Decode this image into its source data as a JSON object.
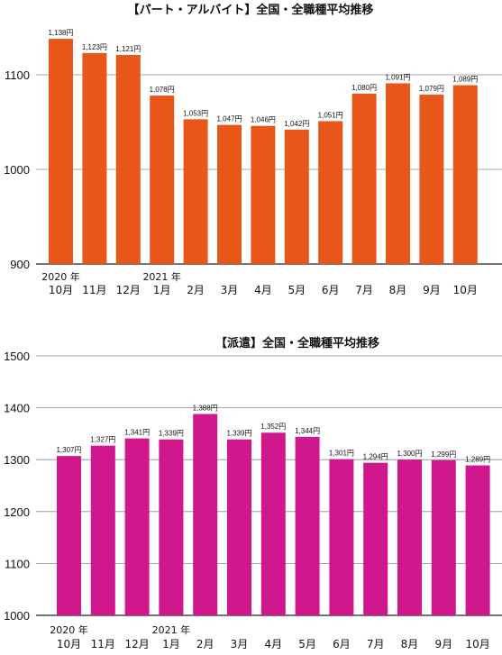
{
  "chart_data": [
    {
      "type": "bar",
      "title": "【パート・アルバイト】全国・全職種平均推移",
      "categories": [
        "10月",
        "11月",
        "12月",
        "1月",
        "2月",
        "3月",
        "4月",
        "5月",
        "6月",
        "7月",
        "8月",
        "9月",
        "10月"
      ],
      "year_labels": [
        {
          "index": 0,
          "text": "2020 年"
        },
        {
          "index": 3,
          "text": "2021 年"
        }
      ],
      "values": [
        1138,
        1123,
        1121,
        1078,
        1053,
        1047,
        1046,
        1042,
        1051,
        1080,
        1091,
        1079,
        1089
      ],
      "data_labels": [
        "1,138円",
        "1,123円",
        "1,121円",
        "1,078円",
        "1,053円",
        "1,047円",
        "1,046円",
        "1,042円",
        "1,051円",
        "1,080円",
        "1,091円",
        "1,079円",
        "1,089円"
      ],
      "yticks": [
        900,
        1000,
        1100
      ],
      "ylim": [
        900,
        1160
      ],
      "grid": true,
      "color": "#E8561A"
    },
    {
      "type": "bar",
      "title": "【派遣】全国・全職種平均推移",
      "categories": [
        "10月",
        "11月",
        "12月",
        "1月",
        "2月",
        "3月",
        "4月",
        "5月",
        "6月",
        "7月",
        "8月",
        "9月",
        "10月"
      ],
      "year_labels": [
        {
          "index": 0,
          "text": "2020 年"
        },
        {
          "index": 3,
          "text": "2021 年"
        }
      ],
      "values": [
        1307,
        1327,
        1341,
        1339,
        1388,
        1339,
        1352,
        1344,
        1301,
        1294,
        1300,
        1299,
        1289
      ],
      "data_labels": [
        "1,307円",
        "1,327円",
        "1,341円",
        "1,339円",
        "1,388円",
        "1,339円",
        "1,352円",
        "1,344円",
        "1,301円",
        "1,294円",
        "1,300円",
        "1,299円",
        "1,289円"
      ],
      "yticks": [
        1000,
        1100,
        1200,
        1300,
        1400,
        1500
      ],
      "ylim": [
        1000,
        1500
      ],
      "grid": true,
      "color": "#D0188C"
    }
  ]
}
